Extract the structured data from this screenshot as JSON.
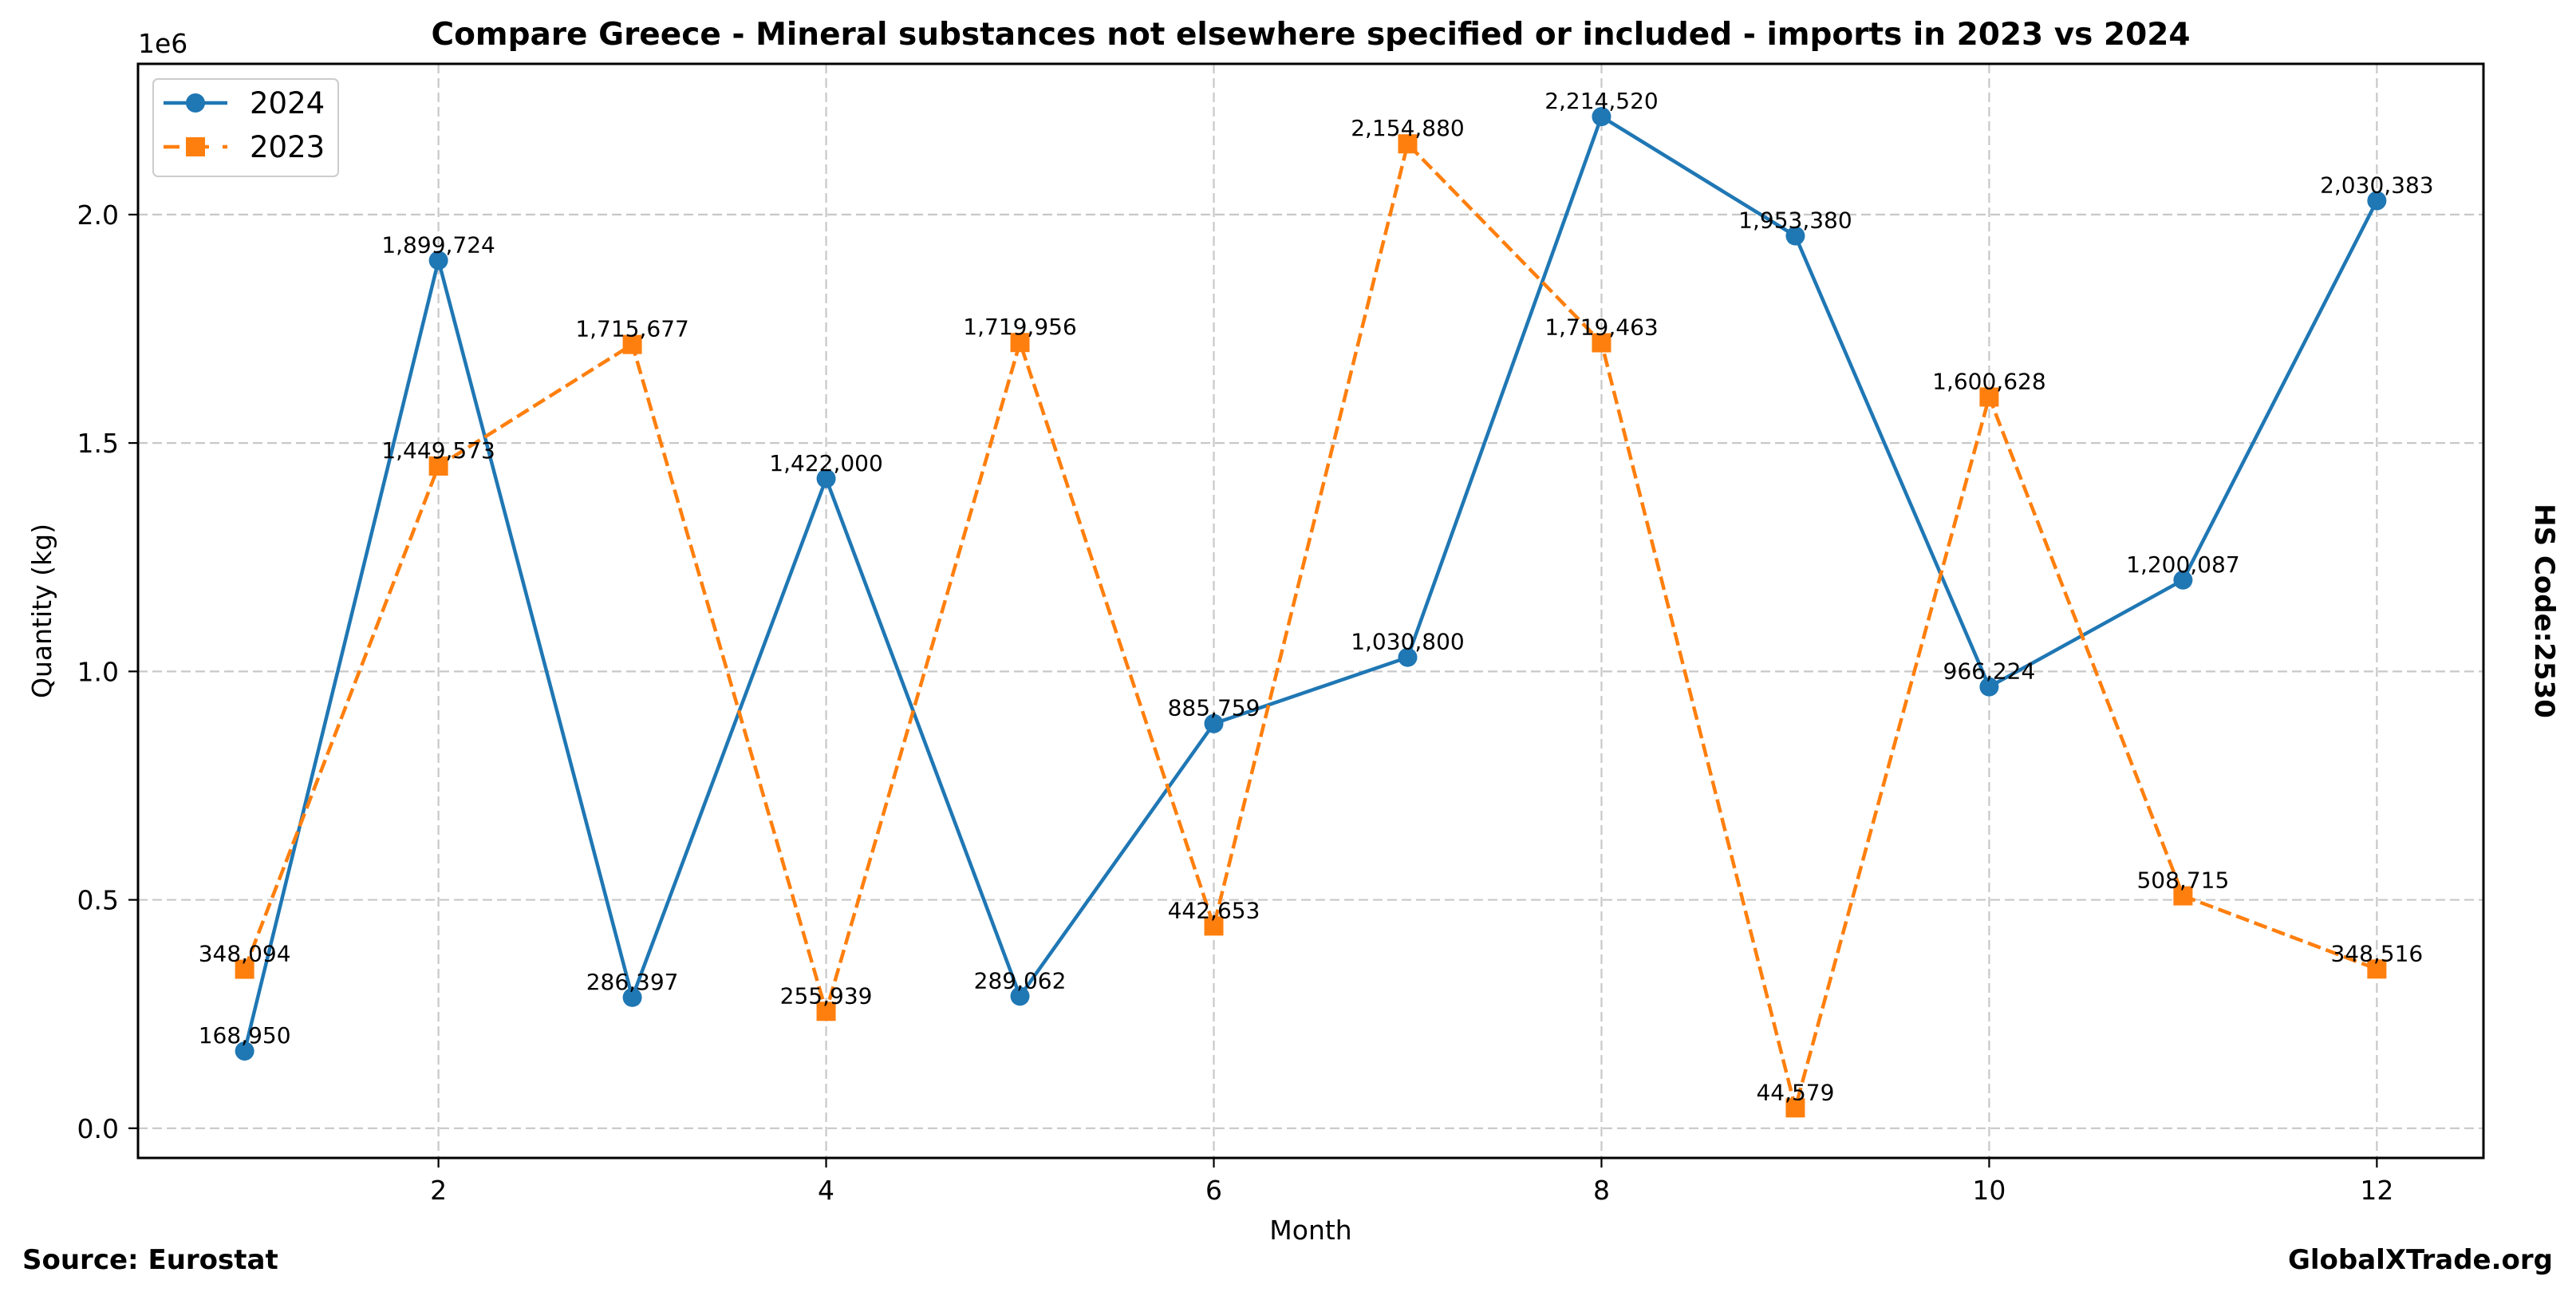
{
  "chart_data": {
    "type": "line",
    "title": "Compare Greece - Mineral substances not elsewhere specified or included - imports in 2023 vs 2024",
    "xlabel": "Month",
    "ylabel": "Quantity (kg)",
    "y_offset_label": "1e6",
    "right_label": "HS Code:2530",
    "x": [
      1,
      2,
      3,
      4,
      5,
      6,
      7,
      8,
      9,
      10,
      11,
      12
    ],
    "xlim": [
      0.45,
      12.55
    ],
    "ylim": [
      -65000,
      2330000
    ],
    "x_ticks": [
      2,
      4,
      6,
      8,
      10,
      12
    ],
    "x_tick_labels": [
      "2",
      "4",
      "6",
      "8",
      "10",
      "12"
    ],
    "y_ticks": [
      0,
      500000,
      1000000,
      1500000,
      2000000
    ],
    "y_tick_labels": [
      "0.0",
      "0.5",
      "1.0",
      "1.5",
      "2.0"
    ],
    "grid": true,
    "legend_position": "top-left",
    "series": [
      {
        "name": "2024",
        "color": "#1f77b4",
        "line_style": "solid",
        "marker": "circle",
        "values": [
          168950,
          1899724,
          286397,
          1422000,
          289062,
          885759,
          1030800,
          2214520,
          1953380,
          966224,
          1200087,
          2030383
        ],
        "labels": [
          "168,950",
          "1,899,724",
          "286,397",
          "1,422,000",
          "289,062",
          "885,759",
          "1,030,800",
          "2,214,520",
          "1,953,380",
          "966,224",
          "1,200,087",
          "2,030,383"
        ]
      },
      {
        "name": "2023",
        "color": "#ff7f0e",
        "line_style": "dashed",
        "marker": "square",
        "values": [
          348094,
          1449573,
          1715677,
          255939,
          1719956,
          442653,
          2154880,
          1719463,
          44579,
          1600628,
          508715,
          348516
        ],
        "labels": [
          "348,094",
          "1,449,573",
          "1,715,677",
          "255,939",
          "1,719,956",
          "442,653",
          "2,154,880",
          "1,719,463",
          "44,579",
          "1,600,628",
          "508,715",
          "348,516"
        ]
      }
    ]
  },
  "footer": {
    "source": "Source: Eurostat",
    "site": "GlobalXTrade.org"
  }
}
